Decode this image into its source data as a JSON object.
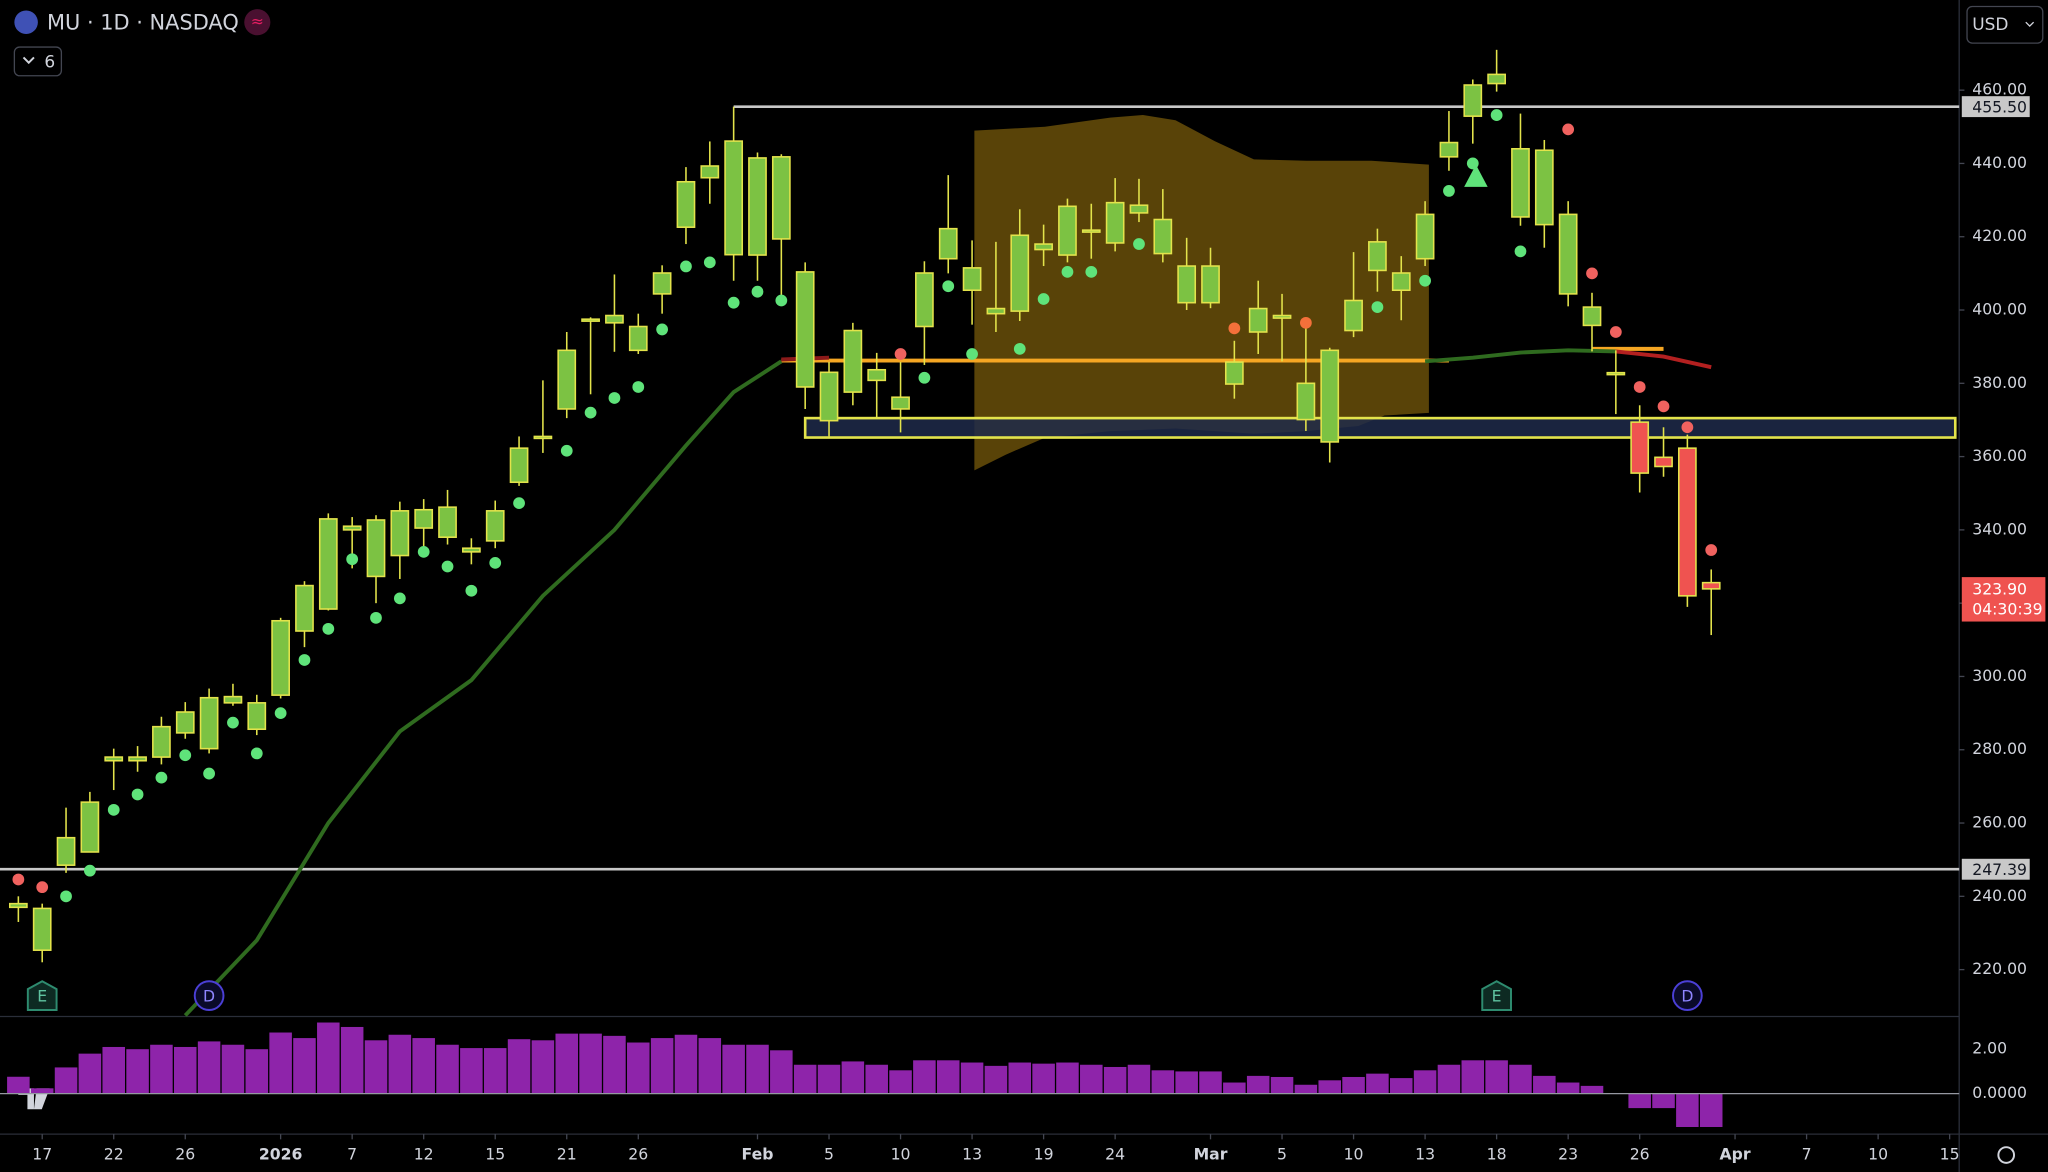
{
  "header": {
    "title": "MU · 1D · NASDAQ",
    "indicator_count": "6",
    "currency": "USD"
  },
  "chart_data": {
    "type": "candlestick",
    "xlim": [
      -0.77,
      81.4
    ],
    "xticks": [
      {
        "value": 1,
        "label": "17"
      },
      {
        "value": 4,
        "label": "22"
      },
      {
        "value": 7,
        "label": "26"
      },
      {
        "value": 11,
        "label": "2026"
      },
      {
        "value": 14,
        "label": "7"
      },
      {
        "value": 17,
        "label": "12"
      },
      {
        "value": 20,
        "label": "15"
      },
      {
        "value": 23,
        "label": "21"
      },
      {
        "value": 26,
        "label": "26"
      },
      {
        "value": 31,
        "label": "Feb"
      },
      {
        "value": 34,
        "label": "5"
      },
      {
        "value": 37,
        "label": "10"
      },
      {
        "value": 40,
        "label": "13"
      },
      {
        "value": 43,
        "label": "19"
      },
      {
        "value": 46,
        "label": "24"
      },
      {
        "value": 50,
        "label": "Mar"
      },
      {
        "value": 53,
        "label": "5"
      },
      {
        "value": 56,
        "label": "10"
      },
      {
        "value": 59,
        "label": "13"
      },
      {
        "value": 62,
        "label": "18"
      },
      {
        "value": 65,
        "label": "23"
      },
      {
        "value": 68,
        "label": "26"
      },
      {
        "value": 72,
        "label": "Apr"
      },
      {
        "value": 75,
        "label": "7"
      },
      {
        "value": 78,
        "label": "10"
      },
      {
        "value": 81,
        "label": "15"
      }
    ],
    "ylim": [
      207.2,
      484.6
    ],
    "yticks": [
      {
        "value": 220,
        "label": "220.00"
      },
      {
        "value": 240,
        "label": "240.00"
      },
      {
        "value": 260,
        "label": "260.00"
      },
      {
        "value": 280,
        "label": "280.00"
      },
      {
        "value": 300,
        "label": "300.00"
      },
      {
        "value": 320,
        "label": "320.00"
      },
      {
        "value": 340,
        "label": "340.00"
      },
      {
        "value": 360,
        "label": "360.00"
      },
      {
        "value": 380,
        "label": "380.00"
      },
      {
        "value": 400,
        "label": "400.00"
      },
      {
        "value": 420,
        "label": "420.00"
      },
      {
        "value": 440,
        "label": "440.00"
      },
      {
        "value": 460,
        "label": "460.00"
      }
    ],
    "up_color": "#7cc243",
    "down_color": "#ef5350",
    "border_color": "#e3e34b",
    "open": [
      237,
      225.3,
      248.5,
      252.1,
      277,
      277,
      278,
      284.6,
      280.3,
      292.8,
      285.6,
      294.9,
      312.4,
      318.4,
      340,
      327.3,
      333,
      340.5,
      338,
      334,
      337,
      353,
      365,
      373,
      397,
      396.5,
      389,
      404.4,
      422.6,
      436.1,
      415.1,
      415,
      419.4,
      379,
      369.8,
      377.6,
      380.8,
      373,
      395.5,
      414,
      405.4,
      399,
      399.7,
      416.5,
      415,
      421.5,
      418.3,
      426.5,
      415.4,
      402,
      402,
      379.8,
      394,
      397.8,
      370.1,
      364,
      394.4,
      410.8,
      405.4,
      414,
      441.8,
      452.9,
      461.8,
      425.4,
      423.3,
      404.4,
      395.8,
      382.4,
      369.4,
      359.8,
      362.3,
      325.6
    ],
    "high": [
      240,
      238,
      264.2,
      268.5,
      280.3,
      281,
      289,
      293,
      296.7,
      298,
      295,
      316,
      326,
      344.5,
      343.5,
      344,
      347.7,
      348.4,
      350.9,
      337.7,
      348,
      365.5,
      380.8,
      394,
      398,
      409.7,
      399,
      412.2,
      439,
      446,
      455.5,
      443,
      442.5,
      413,
      385.8,
      396.5,
      388.3,
      385.8,
      413.3,
      436.8,
      419,
      418.6,
      427.5,
      423.3,
      430.4,
      429,
      436,
      435.8,
      433,
      419.7,
      417,
      391.6,
      408,
      404.4,
      396.9,
      389.7,
      415.8,
      422.2,
      414.7,
      429.7,
      454.3,
      462.9,
      471,
      453.6,
      446.4,
      429.7,
      404.7,
      389,
      374,
      368,
      366,
      329.2
    ],
    "low": [
      233,
      222,
      246.4,
      252,
      269,
      274,
      276,
      283,
      279,
      292,
      284,
      294,
      308,
      318,
      329.5,
      320,
      326.6,
      333,
      336,
      330.6,
      335,
      352,
      361,
      370.5,
      377,
      388.6,
      388,
      399,
      418,
      429,
      408,
      408,
      404,
      373,
      365.5,
      374,
      370.5,
      366.6,
      385,
      410,
      396,
      394,
      397,
      412,
      413,
      414,
      416,
      424,
      413,
      400,
      400.5,
      375.8,
      388,
      386,
      367,
      358.4,
      392.6,
      405,
      397.2,
      412,
      438,
      445.4,
      459.6,
      423,
      417,
      401,
      388.7,
      371.6,
      350.2,
      354.5,
      319,
      311.3
    ],
    "close": [
      238,
      236.7,
      256,
      265.7,
      278,
      278,
      286.3,
      290.3,
      294.2,
      294.5,
      292.8,
      315.2,
      324.8,
      343,
      341,
      342.7,
      345.2,
      345.5,
      346.2,
      335,
      345.2,
      362.3,
      365.5,
      389,
      397.5,
      398.5,
      395.5,
      410.1,
      435,
      439.3,
      446.1,
      441.5,
      441.8,
      410.4,
      383,
      394.4,
      383.7,
      376.2,
      410.1,
      422.2,
      411.5,
      400.4,
      420.4,
      418,
      428.3,
      421.8,
      429.3,
      428.6,
      424.7,
      412,
      412,
      385.8,
      400.4,
      398.5,
      380,
      389,
      402.6,
      418.6,
      410.1,
      426.1,
      445.7,
      461.4,
      464.3,
      444,
      443.6,
      426.1,
      400.8,
      382.9,
      355.5,
      357.3,
      322,
      323.9
    ],
    "dots": [
      {
        "color": "#5fe37a",
        "x": [
          2,
          3,
          4,
          5,
          6,
          7,
          8,
          9,
          10,
          11,
          12,
          13,
          14,
          15,
          16,
          17,
          18,
          19,
          20,
          21,
          23,
          24,
          25,
          26,
          27,
          28,
          29,
          30,
          31,
          32,
          38,
          39,
          40,
          42,
          43,
          44,
          45,
          47,
          57,
          59,
          60,
          61,
          62,
          63
        ],
        "values": [
          240,
          247,
          263.6,
          267.8,
          272.4,
          278.5,
          273.5,
          287.4,
          279,
          290,
          304.5,
          313,
          332,
          316,
          321.3,
          334,
          330,
          323.4,
          331,
          347.3,
          361.6,
          372,
          376,
          379,
          394.7,
          411.9,
          413,
          402,
          405,
          402.6,
          381.5,
          406.5,
          388,
          389.4,
          403,
          410.4,
          410.4,
          418,
          400.8,
          408,
          432.5,
          440,
          453.2,
          416
        ]
      },
      {
        "color": "#f0625f",
        "x": [
          0,
          1,
          37,
          65,
          66,
          67,
          68,
          69,
          70,
          71
        ],
        "values": [
          244.6,
          242.5,
          388,
          449.3,
          410,
          394,
          379,
          373.7,
          368,
          334.5
        ]
      },
      {
        "color": "#f4703a",
        "x": [
          51,
          54
        ],
        "values": [
          395,
          396.5
        ]
      }
    ],
    "trend_lines": [
      {
        "color": "#2f6b1f",
        "x": [
          7,
          10,
          13,
          16,
          19,
          22,
          25,
          28,
          30,
          32
        ],
        "values": [
          207.5,
          228,
          260,
          285,
          299,
          322,
          340,
          363,
          377.6,
          386
        ]
      },
      {
        "color": "#8b1a1a",
        "x": [
          32,
          34
        ],
        "values": [
          386.5,
          387
        ]
      },
      {
        "color": "#2f6b1f",
        "x": [
          59,
          61,
          63,
          65,
          67
        ],
        "values": [
          386,
          387,
          388.4,
          389,
          388.7
        ]
      },
      {
        "color": "#b32020",
        "x": [
          67,
          69,
          71
        ],
        "values": [
          388.7,
          387.3,
          384.4
        ]
      }
    ],
    "levels": [
      {
        "color": "#f5a623",
        "from": 32,
        "to": 60,
        "value": 386.2
      },
      {
        "color": "#f5a623",
        "from": 66,
        "to": 69,
        "value": 389.4
      }
    ],
    "zone": {
      "from": 33,
      "low": 365.2,
      "high": 370.5
    },
    "price_lines": [
      {
        "value": 455.5,
        "label": "455.50",
        "from": 30
      },
      {
        "value": 247.39,
        "label": "247.39",
        "from": -0.77
      }
    ],
    "last_price": {
      "value": 323.9,
      "label": "323.90",
      "countdown": "04:30:39"
    },
    "events": [
      {
        "x": 1,
        "label": "E"
      },
      {
        "x": 8,
        "label": "D"
      },
      {
        "x": 62,
        "label": "E"
      },
      {
        "x": 70,
        "label": "D"
      }
    ],
    "oscillator": {
      "color": "#8e24aa",
      "ylim": [
        -1.82,
        3.47
      ],
      "yticks": [
        {
          "value": 2,
          "label": "2.00"
        },
        {
          "value": 0,
          "label": "0.0000"
        }
      ],
      "values": [
        0.76,
        0.24,
        1.18,
        1.8,
        2.1,
        2.0,
        2.2,
        2.1,
        2.35,
        2.2,
        2.0,
        2.75,
        2.5,
        3.2,
        3.0,
        2.4,
        2.65,
        2.5,
        2.2,
        2.05,
        2.05,
        2.45,
        2.4,
        2.7,
        2.7,
        2.6,
        2.3,
        2.5,
        2.65,
        2.5,
        2.2,
        2.2,
        1.95,
        1.3,
        1.3,
        1.45,
        1.3,
        1.05,
        1.5,
        1.5,
        1.4,
        1.25,
        1.4,
        1.35,
        1.4,
        1.3,
        1.2,
        1.3,
        1.05,
        1.0,
        1.0,
        0.5,
        0.8,
        0.75,
        0.4,
        0.6,
        0.75,
        0.9,
        0.7,
        1.05,
        1.3,
        1.5,
        1.5,
        1.3,
        0.8,
        0.5,
        0.35,
        0,
        -0.65,
        -0.65,
        -1.5,
        -1.5
      ]
    }
  }
}
